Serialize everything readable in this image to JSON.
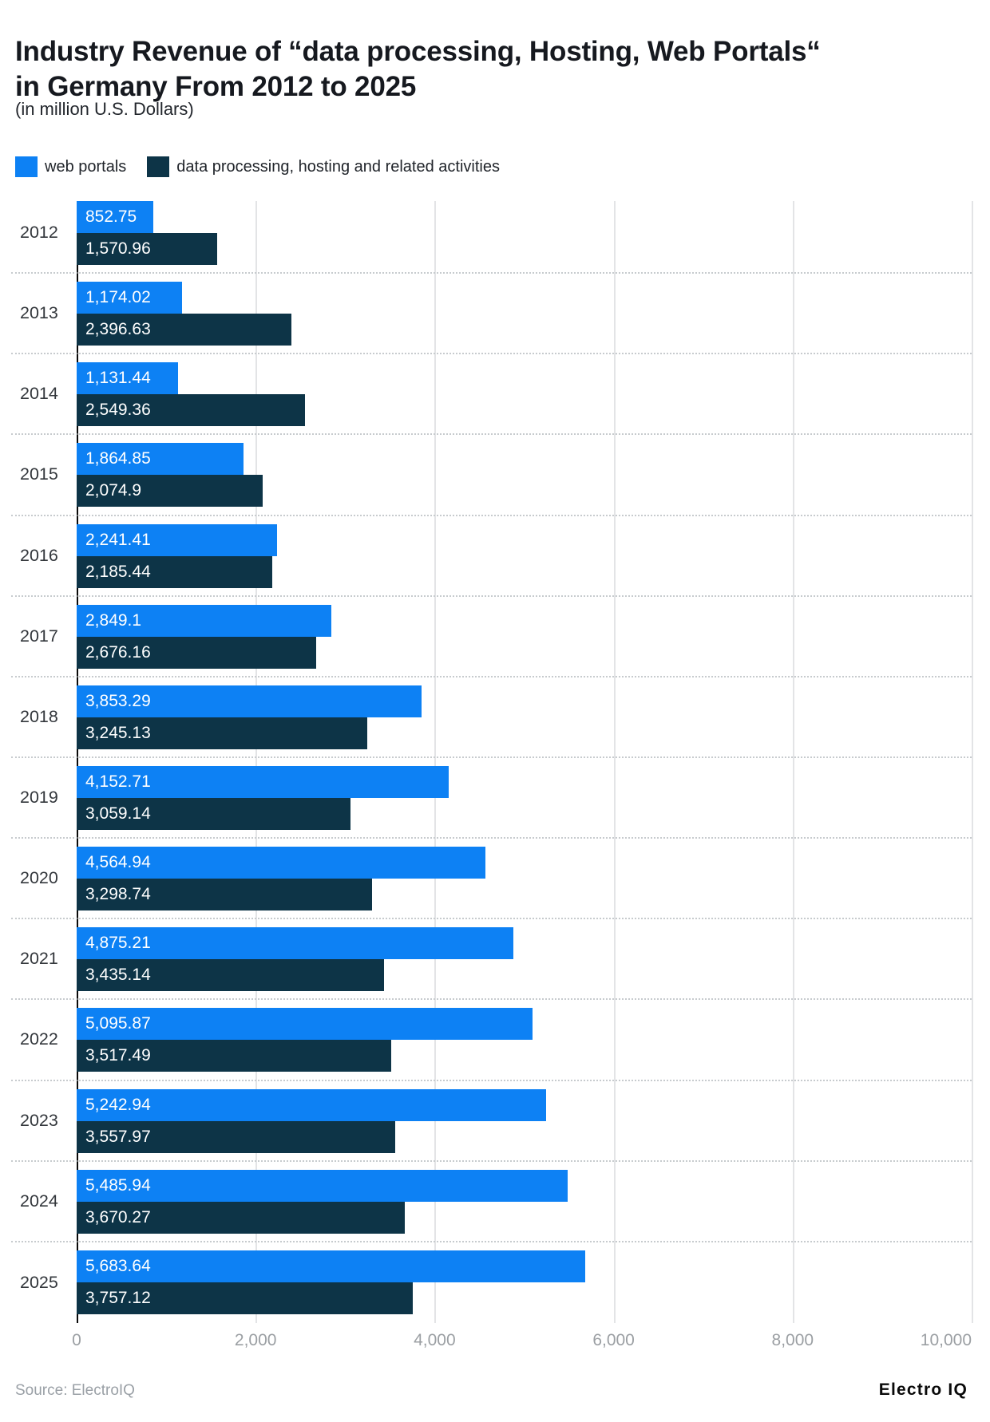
{
  "header": {
    "title_lines": [
      "Industry Revenue of “data processing, Hosting, Web Portals“",
      "in Germany From 2012 to 2025"
    ],
    "subtitle": "(in million U.S. Dollars)"
  },
  "legend": [
    {
      "label": "web portals",
      "color": "#0d81f4"
    },
    {
      "label": "data processing, hosting and related activities",
      "color": "#0d3447"
    }
  ],
  "chart_data": {
    "type": "bar",
    "orientation": "horizontal",
    "title": "Industry Revenue of “data processing, Hosting, Web Portals“ in Germany From 2012 to 2025",
    "subtitle": "(in million U.S. Dollars)",
    "categories": [
      "2012",
      "2013",
      "2014",
      "2015",
      "2016",
      "2017",
      "2018",
      "2019",
      "2020",
      "2021",
      "2022",
      "2023",
      "2024",
      "2025"
    ],
    "series": [
      {
        "name": "web portals",
        "color": "#0d81f4",
        "values": [
          852.75,
          1174.02,
          1131.44,
          1864.85,
          2241.41,
          2849.1,
          3853.29,
          4152.71,
          4564.94,
          4875.21,
          5095.87,
          5242.94,
          5485.94,
          5683.64
        ],
        "labels": [
          "852.75",
          "1,174.02",
          "1,131.44",
          "1,864.85",
          "2,241.41",
          "2,849.1",
          "3,853.29",
          "4,152.71",
          "4,564.94",
          "4,875.21",
          "5,095.87",
          "5,242.94",
          "5,485.94",
          "5,683.64"
        ]
      },
      {
        "name": "data processing, hosting and related activities",
        "color": "#0d3447",
        "values": [
          1570.96,
          2396.63,
          2549.36,
          2074.9,
          2185.44,
          2676.16,
          3245.13,
          3059.14,
          3298.74,
          3435.14,
          3517.49,
          3557.97,
          3670.27,
          3757.12
        ],
        "labels": [
          "1,570.96",
          "2,396.63",
          "2,549.36",
          "2,074.9",
          "2,185.44",
          "2,676.16",
          "3,245.13",
          "3,059.14",
          "3,298.74",
          "3,435.14",
          "3,517.49",
          "3,557.97",
          "3,670.27",
          "3,757.12"
        ]
      }
    ],
    "xlim": [
      0,
      10000
    ],
    "x_ticks": [
      "0",
      "2,000",
      "4,000",
      "6,000",
      "8,000",
      "10,000"
    ],
    "grid": "vertical solid gridlines; dotted horizontal separators between year groups",
    "legend_position": "top",
    "value_labels": "inside bar start, white"
  },
  "footer": {
    "source": "Source: ElectroIQ",
    "brand": "Electro IQ"
  }
}
